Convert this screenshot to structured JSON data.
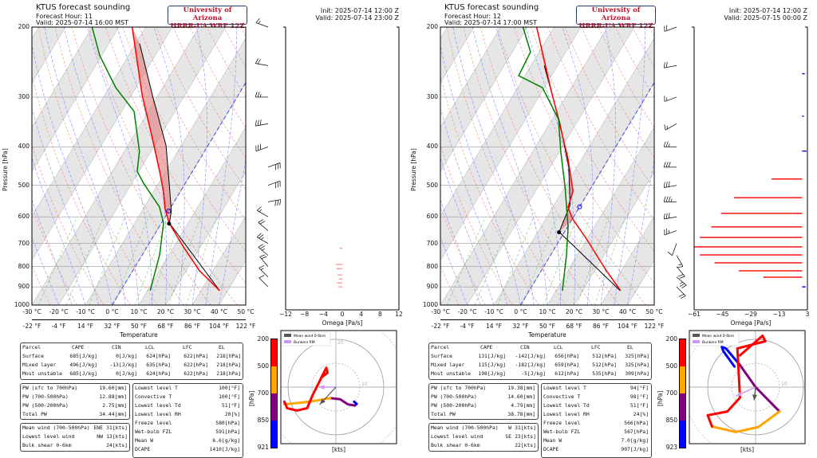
{
  "colors": {
    "temperature": "#ff0000",
    "dewpoint": "#008000",
    "parcel": "#000000",
    "cape_fill": "#e07070",
    "isotherm_band": "#e6e6e6",
    "dry_adiabat": "#e88",
    "moist_adiabat": "#88f",
    "mixing_ratio": "#6c6",
    "freezing_isotherm": "#4444dd",
    "omega_down": "#ff0000",
    "omega_up": "#0000ff",
    "hodo_0": "#0000ff",
    "hodo_1": "#800080",
    "hodo_2": "#ffa500",
    "hodo_3": "#ff0000",
    "mean_wind": "#555555",
    "bunkers": "#cc99ee"
  },
  "panels": [
    {
      "title": "KTUS forecast sounding",
      "forecast_hour": "Forecast Hour: 11",
      "valid_local": "Valid: 2025-07-14 16:00 MST",
      "logo_line1": "University of Arizona",
      "logo_line2": "HRRR-UA WRF 12Z",
      "init": "Init: 2025-07-14 12:00 Z",
      "valid_utc": "Valid: 2025-07-14 23:00 Z",
      "parcel_table": {
        "headers": [
          "Parcel",
          "CAPE",
          "CIN",
          "LCL",
          "LFC",
          "EL"
        ],
        "rows": [
          [
            "Surface",
            "685[J/kg]",
            "0[J/kg]",
            "624[hPa]",
            "622[hPa]",
            "218[hPa]"
          ],
          [
            "Mixed layer",
            "496[J/kg]",
            "-13[J/kg]",
            "635[hPa]",
            "622[hPa]",
            "218[hPa]"
          ],
          [
            "Most unstable",
            "685[J/kg]",
            "0[J/kg]",
            "624[hPa]",
            "622[hPa]",
            "218[hPa]"
          ]
        ]
      },
      "pw_table": [
        [
          "PW (sfc to 700hPa)",
          "19.60[mm]"
        ],
        [
          "PW (700-500hPa)",
          "12.88[mm]"
        ],
        [
          "PW (500-200hPa)",
          "2.75[mm]"
        ],
        [
          "Total PW",
          "34.44[mm]"
        ]
      ],
      "wind_table": [
        [
          "Mean wind (700-500hPa)",
          "ENE",
          "31[kts]"
        ],
        [
          "Lowest level wind",
          "NW",
          "13[kts]"
        ],
        [
          "Bulk shear 0-6km",
          "",
          "24[kts]"
        ]
      ],
      "misc_table": [
        [
          "Lowest level T",
          "100[°F]"
        ],
        [
          "Convective T",
          "100[°F]"
        ],
        [
          "Lowest level Td",
          "51[°F]"
        ],
        [
          "Lowest level RH",
          "20[%]"
        ],
        [
          "Freeze level",
          "580[hPa]"
        ],
        [
          "Wet-bulb FZL",
          "591[hPa]"
        ],
        [
          "Mean W",
          "6.6[g/kg]"
        ],
        [
          "DCAPE",
          "1410[J/kg]"
        ]
      ],
      "hodo_colorbar_labels": [
        "200",
        "500",
        "700",
        "850",
        "921"
      ]
    },
    {
      "title": "KTUS forecast sounding",
      "forecast_hour": "Forecast Hour: 12",
      "valid_local": "Valid: 2025-07-14 17:00 MST",
      "logo_line1": "University of Arizona",
      "logo_line2": "HRRR-UA WRF 12Z",
      "init": "Init: 2025-07-14 12:00 Z",
      "valid_utc": "Valid: 2025-07-15 00:00 Z",
      "parcel_table": {
        "headers": [
          "Parcel",
          "CAPE",
          "CIN",
          "LCL",
          "LFC",
          "EL"
        ],
        "rows": [
          [
            "Surface",
            "131[J/kg]",
            "-142[J/kg]",
            "656[hPa]",
            "512[hPa]",
            "325[hPa]"
          ],
          [
            "Mixed layer",
            "115[J/kg]",
            "-182[J/kg]",
            "659[hPa]",
            "512[hPa]",
            "325[hPa]"
          ],
          [
            "Most unstable",
            "198[J/kg]",
            "-5[J/kg]",
            "612[hPa]",
            "535[hPa]",
            "309[hPa]"
          ]
        ]
      },
      "pw_table": [
        [
          "PW (sfc to 700hPa)",
          "19.38[mm]"
        ],
        [
          "PW (700-500hPa)",
          "14.60[mm]"
        ],
        [
          "PW (500-200hPa)",
          "4.79[mm]"
        ],
        [
          "Total PW",
          "38.78[mm]"
        ]
      ],
      "wind_table": [
        [
          "Mean wind (700-500hPa)",
          "W",
          "31[kts]"
        ],
        [
          "Lowest level wind",
          "SE",
          "23[kts]"
        ],
        [
          "Bulk shear 0-6km",
          "",
          "22[kts]"
        ]
      ],
      "misc_table": [
        [
          "Lowest level T",
          "94[°F]"
        ],
        [
          "Convective T",
          "98[°F]"
        ],
        [
          "Lowest level Td",
          "51[°F]"
        ],
        [
          "Lowest level RH",
          "24[%]"
        ],
        [
          "Freeze level",
          "566[hPa]"
        ],
        [
          "Wet-bulb FZL",
          "567[hPa]"
        ],
        [
          "Mean W",
          "7.0[g/kg]"
        ],
        [
          "DCAPE",
          "907[J/kg]"
        ]
      ],
      "hodo_colorbar_labels": [
        "200",
        "500",
        "700",
        "850",
        "923"
      ]
    }
  ],
  "chart_data": [
    {
      "type": "line",
      "chart": "skew-t",
      "title": "KTUS forecast sounding",
      "ylabel": "Pressure [hPa]",
      "xlabel": "Temperature",
      "y_scale": "log",
      "ylim": [
        1000,
        200
      ],
      "xlim": [
        -30,
        50
      ],
      "y_ticks": [
        "200",
        "300",
        "400",
        "500",
        "600",
        "700",
        "800",
        "900",
        "1000"
      ],
      "x_ticks_c": [
        "-30 °C",
        "-20 °C",
        "-10 °C",
        "0 °C",
        "10 °C",
        "20 °C",
        "30 °C",
        "40 °C",
        "50 °C"
      ],
      "x_ticks_f": [
        "-22 °F",
        "-4 °F",
        "14 °F",
        "32 °F",
        "50 °F",
        "68 °F",
        "86 °F",
        "104 °F",
        "122 °F"
      ],
      "temperature": [
        [
          920,
          37
        ],
        [
          820,
          25
        ],
        [
          714,
          13.6
        ],
        [
          622,
          2.9
        ],
        [
          573,
          -1.8
        ],
        [
          517,
          -6.4
        ],
        [
          461,
          -12.3
        ],
        [
          374,
          -23.4
        ],
        [
          297,
          -35.9
        ],
        [
          200,
          -55
        ]
      ],
      "dewpoint": [
        [
          920,
          11
        ],
        [
          748,
          6.5
        ],
        [
          622,
          0.8
        ],
        [
          567,
          -4.3
        ],
        [
          494,
          -15.6
        ],
        [
          461,
          -20.7
        ],
        [
          411,
          -24.3
        ],
        [
          326,
          -35.3
        ],
        [
          284,
          -47.5
        ],
        [
          236,
          -60.7
        ],
        [
          200,
          -70
        ]
      ],
      "parcel": [
        [
          920,
          37
        ],
        [
          622,
          3
        ],
        [
          580,
          1
        ],
        [
          500,
          -5.5
        ],
        [
          397,
          -15.7
        ],
        [
          300,
          -31.5
        ],
        [
          220,
          -48.5
        ]
      ],
      "lcl_point": [
        624,
        3
      ],
      "freezing_point": [
        580,
        0
      ],
      "omega": {
        "xlabel": "Omega [Pa/s]",
        "xlim": [
          -12,
          12
        ],
        "x_ticks": [
          "−12",
          "−8",
          "−4",
          "0",
          "4",
          "8",
          "12"
        ],
        "values": [
          [
            720,
            -0.6
          ],
          [
            790,
            -1.4
          ],
          [
            810,
            -1.2
          ],
          [
            840,
            -1.0
          ],
          [
            860,
            -0.7
          ],
          [
            880,
            -1.1
          ],
          [
            900,
            -0.8
          ]
        ]
      },
      "winds": [
        [
          200,
          290,
          15
        ],
        [
          250,
          280,
          20
        ],
        [
          300,
          270,
          25
        ],
        [
          350,
          260,
          30
        ],
        [
          400,
          250,
          30
        ],
        [
          450,
          70,
          30
        ],
        [
          500,
          70,
          32
        ],
        [
          550,
          80,
          30
        ],
        [
          600,
          300,
          15
        ],
        [
          650,
          310,
          20
        ],
        [
          700,
          300,
          25
        ],
        [
          750,
          310,
          25
        ],
        [
          800,
          320,
          20
        ],
        [
          850,
          315,
          15
        ],
        [
          900,
          315,
          13
        ]
      ],
      "hodograph": {
        "xlabel": "[kts]",
        "ylabel": "[hPa]",
        "rings": [
          "10",
          "20"
        ],
        "legend": [
          "Mean wind 0-6km",
          "Bunkers RM"
        ],
        "segments": [
          [
            [
              7.6,
              -6.1
            ],
            [
              8.7,
              -7
            ],
            [
              7.9,
              -7.7
            ]
          ],
          [
            [
              7.9,
              -7.7
            ],
            [
              5,
              -7.2
            ],
            [
              1.8,
              -5.1
            ],
            [
              -2.4,
              -4.6
            ]
          ],
          [
            [
              -2.4,
              -4.6
            ],
            [
              -10.9,
              -6.1
            ],
            [
              -21.5,
              -7.2
            ],
            [
              -21.5,
              -6.1
            ]
          ],
          [
            [
              -21.5,
              -6.1
            ],
            [
              -20.4,
              -8.8
            ],
            [
              -16.2,
              -9.8
            ],
            [
              -12,
              -8.8
            ],
            [
              -9.8,
              -3.5
            ],
            [
              -7.7,
              0.7
            ],
            [
              -4,
              8.1
            ],
            [
              -3.5,
              6
            ],
            [
              -6.1,
              4
            ]
          ]
        ],
        "mean_wind": [
          -6.7,
          -7.2
        ],
        "bunkers_rm": [
          -7.2,
          0
        ]
      }
    },
    {
      "type": "line",
      "chart": "skew-t",
      "title": "KTUS forecast sounding",
      "ylabel": "Pressure [hPa]",
      "xlabel": "Temperature",
      "y_scale": "log",
      "ylim": [
        1000,
        200
      ],
      "xlim": [
        -30,
        50
      ],
      "y_ticks": [
        "200",
        "300",
        "400",
        "500",
        "600",
        "700",
        "800",
        "900",
        "1000"
      ],
      "x_ticks_c": [
        "-30 °C",
        "-20 °C",
        "-10 °C",
        "0 °C",
        "10 °C",
        "20 °C",
        "30 °C",
        "40 °C",
        "50 °C"
      ],
      "x_ticks_f": [
        "-22 °F",
        "-4 °F",
        "14 °F",
        "32 °F",
        "50 °F",
        "68 °F",
        "86 °F",
        "104 °F",
        "122 °F"
      ],
      "temperature": [
        [
          920,
          34.2
        ],
        [
          820,
          24.4
        ],
        [
          682,
          9.8
        ],
        [
          608,
          0.2
        ],
        [
          567,
          -4.3
        ],
        [
          517,
          -6
        ],
        [
          430,
          -15
        ],
        [
          341,
          -27.6
        ],
        [
          284,
          -37.7
        ],
        [
          200,
          -56.5
        ]
      ],
      "dewpoint": [
        [
          920,
          12.4
        ],
        [
          748,
          5.9
        ],
        [
          636,
          0.2
        ],
        [
          505,
          -9.9
        ],
        [
          411,
          -19.5
        ],
        [
          341,
          -27.6
        ],
        [
          284,
          -40.7
        ],
        [
          265,
          -52.3
        ],
        [
          231,
          -53.2
        ],
        [
          200,
          -61.6
        ]
      ],
      "parcel": [
        [
          920,
          34
        ],
        [
          655,
          -2
        ],
        [
          560,
          -4
        ],
        [
          450,
          -13
        ],
        [
          350,
          -26
        ],
        [
          250,
          -45
        ]
      ],
      "lcl_point": [
        656,
        -2
      ],
      "freezing_point": [
        566,
        0
      ],
      "omega": {
        "xlabel": "Omega [Pa/s]",
        "xlim": [
          -61,
          3
        ],
        "x_ticks": [
          "−61",
          "−45",
          "−29",
          "−13",
          "3"
        ],
        "values": [
          [
            262,
            1.5
          ],
          [
            335,
            1
          ],
          [
            410,
            2.5
          ],
          [
            482,
            -17.3
          ],
          [
            537,
            -38.4
          ],
          [
            588,
            -45.8
          ],
          [
            636,
            -51.3
          ],
          [
            676,
            -57.8
          ],
          [
            714,
            -61.5
          ],
          [
            748,
            -57.8
          ],
          [
            783,
            -49.5
          ],
          [
            820,
            -35.7
          ],
          [
            851,
            -21.9
          ],
          [
            900,
            2
          ]
        ]
      },
      "winds": [
        [
          200,
          250,
          20
        ],
        [
          250,
          260,
          20
        ],
        [
          300,
          250,
          15
        ],
        [
          350,
          240,
          15
        ],
        [
          400,
          270,
          25
        ],
        [
          450,
          270,
          30
        ],
        [
          500,
          260,
          30
        ],
        [
          550,
          270,
          35
        ],
        [
          600,
          260,
          30
        ],
        [
          650,
          250,
          25
        ],
        [
          700,
          200,
          10
        ],
        [
          750,
          150,
          15
        ],
        [
          800,
          140,
          20
        ],
        [
          850,
          130,
          25
        ],
        [
          900,
          135,
          23
        ]
      ],
      "hodograph": {
        "xlabel": "[kts]",
        "ylabel": "[hPa]",
        "rings": [
          "10",
          "20"
        ],
        "legend": [
          "Mean wind 0-6km",
          "Bunkers RM"
        ],
        "segments": [
          [
            [
              -8.8,
              8.6
            ],
            [
              -13.5,
              15.1
            ],
            [
              -14.1,
              16.8
            ],
            [
              -12.4,
              16.2
            ],
            [
              -6.5,
              9.2
            ]
          ],
          [
            [
              -6.5,
              9.2
            ],
            [
              0,
              0
            ],
            [
              10,
              -10.2
            ]
          ],
          [
            [
              10,
              -10.2
            ],
            [
              1.2,
              -16.7
            ],
            [
              -8.2,
              -18.8
            ],
            [
              -18.2,
              -16.5
            ]
          ],
          [
            [
              -18.2,
              -16.5
            ],
            [
              -20,
              -11.8
            ],
            [
              -11.8,
              -10.2
            ],
            [
              -6.5,
              -4.4
            ],
            [
              -7.6,
              16.2
            ],
            [
              4.1,
              19.2
            ],
            [
              2.9,
              21.5
            ],
            [
              -6.5,
              13.3
            ]
          ]
        ],
        "mean_wind": [
          -0.6,
          -5.5
        ],
        "bunkers_rm": [
          -8.2,
          -3.8
        ]
      }
    }
  ]
}
